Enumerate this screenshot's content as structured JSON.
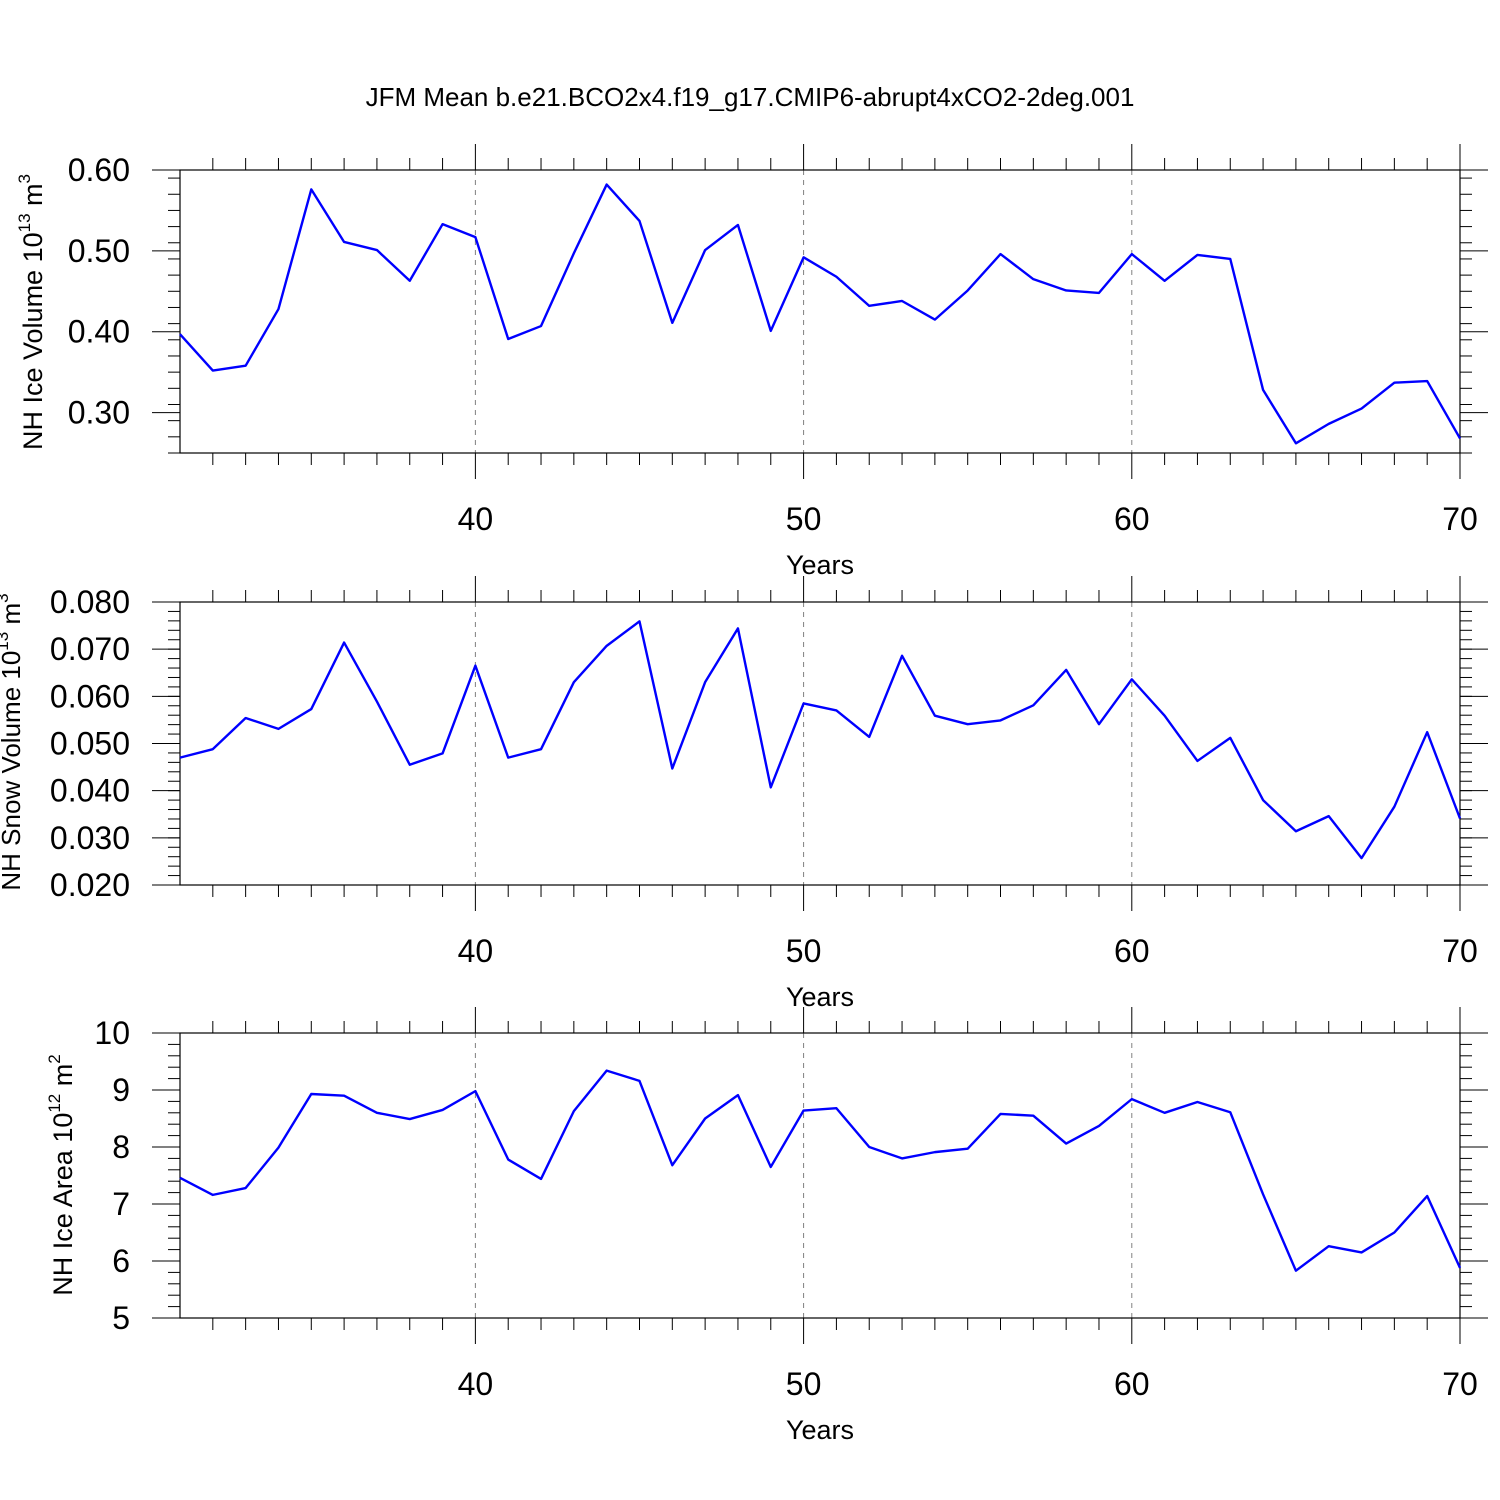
{
  "figure_title": "JFM Mean b.e21.BCO2x4.f19_g17.CMIP6-abrupt4xCO2-2deg.001",
  "colors": {
    "series": "#0000ff",
    "axes": "#000000",
    "grid": "#808080"
  },
  "chart_data": [
    {
      "type": "line",
      "title": "",
      "xlabel": "Years",
      "ylabel": {
        "prefix": "NH Ice Volume 10",
        "exponent": "13",
        "unit": " m",
        "unit_exponent": "3"
      },
      "xlim": [
        31,
        70
      ],
      "ylim": [
        0.25,
        0.6
      ],
      "xticks": [
        40,
        50,
        60,
        70
      ],
      "xtick_labels": [
        "40",
        "50",
        "60",
        "70"
      ],
      "yticks": [
        0.3,
        0.4,
        0.5,
        0.6
      ],
      "ytick_labels": [
        "0.30",
        "0.40",
        "0.50",
        "0.60"
      ],
      "grid_x": [
        40,
        50,
        60
      ],
      "x": [
        31,
        32,
        33,
        34,
        35,
        36,
        37,
        38,
        39,
        40,
        41,
        42,
        43,
        44,
        45,
        46,
        47,
        48,
        49,
        50,
        51,
        52,
        53,
        54,
        55,
        56,
        57,
        58,
        59,
        60,
        61,
        62,
        63,
        64,
        65,
        66,
        67,
        68,
        69,
        70
      ],
      "series": [
        {
          "name": "NH Ice Volume",
          "values": [
            0.397,
            0.352,
            0.358,
            0.428,
            0.576,
            0.511,
            0.501,
            0.463,
            0.533,
            0.517,
            0.391,
            0.407,
            0.497,
            0.582,
            0.537,
            0.411,
            0.501,
            0.532,
            0.401,
            0.492,
            0.468,
            0.432,
            0.438,
            0.415,
            0.451,
            0.496,
            0.465,
            0.451,
            0.448,
            0.496,
            0.463,
            0.495,
            0.49,
            0.328,
            0.262,
            0.286,
            0.305,
            0.337,
            0.339,
            0.268
          ]
        }
      ]
    },
    {
      "type": "line",
      "title": "",
      "xlabel": "Years",
      "ylabel": {
        "prefix": "NH Snow Volume 10",
        "exponent": "13",
        "unit": " m",
        "unit_exponent": "3"
      },
      "xlim": [
        31,
        70
      ],
      "ylim": [
        0.02,
        0.08
      ],
      "xticks": [
        40,
        50,
        60,
        70
      ],
      "xtick_labels": [
        "40",
        "50",
        "60",
        "70"
      ],
      "yticks": [
        0.02,
        0.03,
        0.04,
        0.05,
        0.06,
        0.07,
        0.08
      ],
      "ytick_labels": [
        "0.020",
        "0.030",
        "0.040",
        "0.050",
        "0.060",
        "0.070",
        "0.080"
      ],
      "grid_x": [
        40,
        50,
        60
      ],
      "x": [
        31,
        32,
        33,
        34,
        35,
        36,
        37,
        38,
        39,
        40,
        41,
        42,
        43,
        44,
        45,
        46,
        47,
        48,
        49,
        50,
        51,
        52,
        53,
        54,
        55,
        56,
        57,
        58,
        59,
        60,
        61,
        62,
        63,
        64,
        65,
        66,
        67,
        68,
        69,
        70
      ],
      "series": [
        {
          "name": "NH Snow Volume",
          "values": [
            0.047,
            0.0488,
            0.0554,
            0.0531,
            0.0573,
            0.0714,
            0.0589,
            0.0455,
            0.0479,
            0.0665,
            0.047,
            0.0488,
            0.063,
            0.0707,
            0.0759,
            0.0447,
            0.063,
            0.0744,
            0.0407,
            0.0585,
            0.057,
            0.0514,
            0.0686,
            0.0559,
            0.0541,
            0.0549,
            0.0581,
            0.0656,
            0.0541,
            0.0636,
            0.0559,
            0.0463,
            0.0512,
            0.038,
            0.0314,
            0.0346,
            0.0257,
            0.0366,
            0.0524,
            0.0341
          ]
        }
      ]
    },
    {
      "type": "line",
      "title": "",
      "xlabel": "Years",
      "ylabel": {
        "prefix": "NH Ice Area 10",
        "exponent": "12",
        "unit": " m",
        "unit_exponent": "2"
      },
      "xlim": [
        31,
        70
      ],
      "ylim": [
        5,
        10
      ],
      "xticks": [
        40,
        50,
        60,
        70
      ],
      "xtick_labels": [
        "40",
        "50",
        "60",
        "70"
      ],
      "yticks": [
        5,
        6,
        7,
        8,
        9,
        10
      ],
      "ytick_labels": [
        "5",
        "6",
        "7",
        "8",
        "9",
        "10"
      ],
      "grid_x": [
        40,
        50,
        60
      ],
      "x": [
        31,
        32,
        33,
        34,
        35,
        36,
        37,
        38,
        39,
        40,
        41,
        42,
        43,
        44,
        45,
        46,
        47,
        48,
        49,
        50,
        51,
        52,
        53,
        54,
        55,
        56,
        57,
        58,
        59,
        60,
        61,
        62,
        63,
        64,
        65,
        66,
        67,
        68,
        69,
        70
      ],
      "series": [
        {
          "name": "NH Ice Area",
          "values": [
            7.46,
            7.16,
            7.28,
            7.99,
            8.93,
            8.9,
            8.6,
            8.49,
            8.65,
            8.98,
            7.78,
            7.44,
            8.63,
            9.34,
            9.16,
            7.68,
            8.5,
            8.91,
            7.65,
            8.64,
            8.68,
            8.0,
            7.8,
            7.91,
            7.97,
            8.58,
            8.55,
            8.06,
            8.37,
            8.84,
            8.6,
            8.79,
            8.61,
            7.17,
            5.83,
            6.26,
            6.15,
            6.5,
            7.14,
            5.88
          ]
        }
      ]
    }
  ]
}
